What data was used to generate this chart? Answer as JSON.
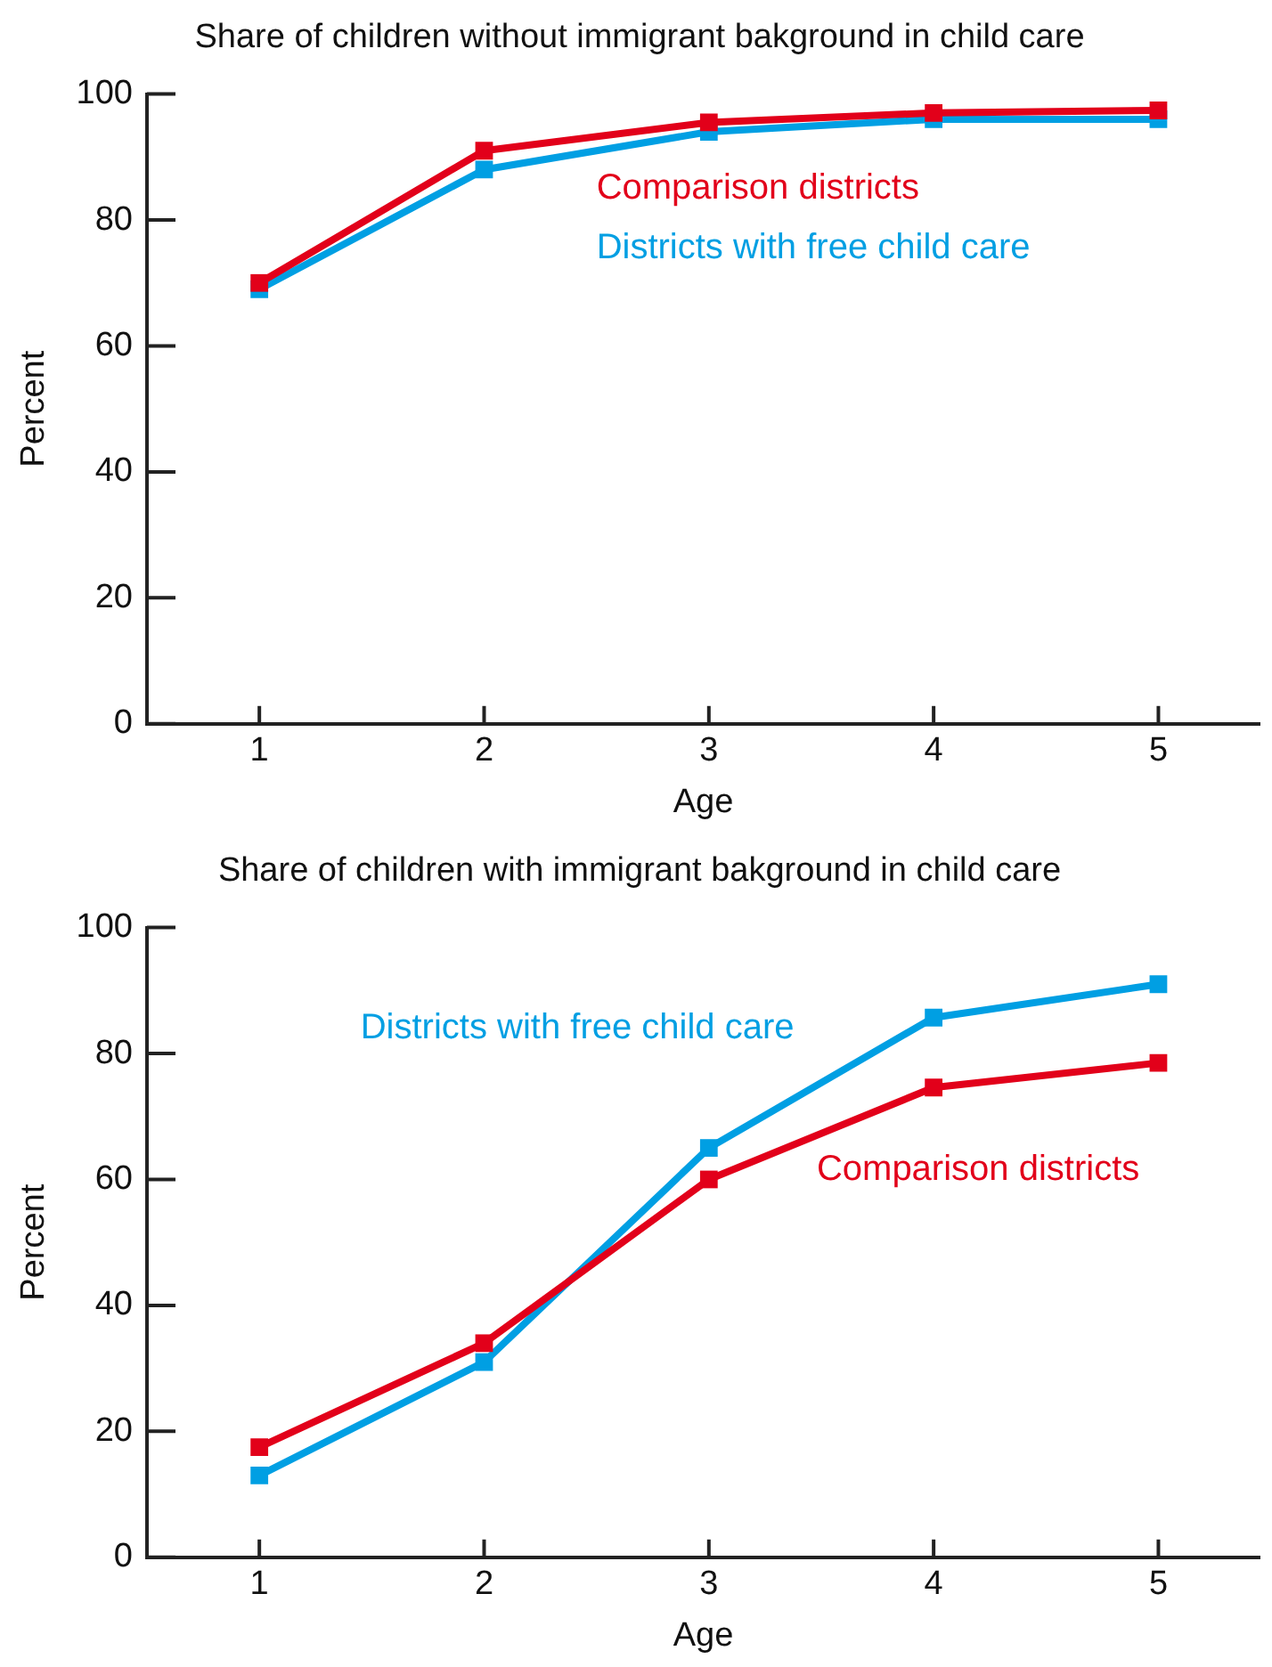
{
  "chart_data": [
    {
      "type": "line",
      "title": "Share of children without immigrant bakground in child care",
      "xlabel": "Age",
      "ylabel": "Percent",
      "x": [
        1,
        2,
        3,
        4,
        5
      ],
      "xlim": [
        0.5,
        5.45
      ],
      "xticks": [
        1,
        2,
        3,
        4,
        5
      ],
      "ylim": [
        0,
        100
      ],
      "yticks": [
        0,
        20,
        40,
        60,
        80,
        100
      ],
      "grid": false,
      "legend": false,
      "marker": "square",
      "line_style": "solid",
      "series": [
        {
          "name": "Comparison districts",
          "color": "#e2001a",
          "values": [
            70,
            91,
            95.5,
            97,
            97.4
          ]
        },
        {
          "name": "Districts with free child care",
          "color": "#009fe3",
          "values": [
            69,
            88,
            94,
            96,
            96
          ]
        }
      ]
    },
    {
      "type": "line",
      "title": "Share of children with immigrant bakground in child care",
      "xlabel": "Age",
      "ylabel": "Percent",
      "x": [
        1,
        2,
        3,
        4,
        5
      ],
      "xlim": [
        0.5,
        5.45
      ],
      "xticks": [
        1,
        2,
        3,
        4,
        5
      ],
      "ylim": [
        0,
        100
      ],
      "yticks": [
        0,
        20,
        40,
        60,
        80,
        100
      ],
      "grid": false,
      "legend": false,
      "marker": "square",
      "line_style": "solid",
      "series": [
        {
          "name": "Comparison districts",
          "color": "#e2001a",
          "values": [
            17.5,
            34,
            60,
            74.6,
            78.5
          ]
        },
        {
          "name": "Districts with free child care",
          "color": "#009fe3",
          "values": [
            13,
            31,
            65,
            85.7,
            91
          ]
        }
      ]
    }
  ]
}
